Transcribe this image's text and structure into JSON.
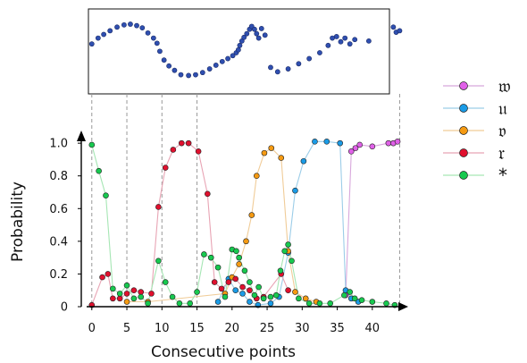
{
  "chart_data": {
    "type": "line",
    "xlabel": "Consecutive points",
    "ylabel": "Probability",
    "xticks": [
      0,
      5,
      10,
      15,
      20,
      25,
      30,
      35,
      40
    ],
    "yticks": [
      "0",
      "0.2",
      "0.4",
      "0.6",
      "0.8",
      "1.0"
    ],
    "xlim": [
      -1.5,
      45.5
    ],
    "ylim": [
      0,
      1.05
    ],
    "legend_position": "right",
    "series": [
      {
        "name": "𝔴",
        "color": "#e060e8",
        "line_color": "#d8a8dc",
        "points": [
          [
            36.2,
            0.07
          ],
          [
            37,
            0.95
          ],
          [
            37.6,
            0.97
          ],
          [
            38.2,
            0.99
          ],
          [
            40,
            0.98
          ],
          [
            42.3,
            1.0
          ],
          [
            43,
            1.0
          ],
          [
            43.6,
            1.01
          ]
        ]
      },
      {
        "name": "𝔲",
        "color": "#1a9be6",
        "line_color": "#9ccde8",
        "points": [
          [
            18,
            0.03
          ],
          [
            19.5,
            0.17
          ],
          [
            20.5,
            0.1
          ],
          [
            21.5,
            0.08
          ],
          [
            22.5,
            0.03
          ],
          [
            23.7,
            0.01
          ],
          [
            25.5,
            0.02
          ],
          [
            26.7,
            0.06
          ],
          [
            28,
            0.33
          ],
          [
            29,
            0.71
          ],
          [
            30.2,
            0.89
          ],
          [
            31.8,
            1.01
          ],
          [
            33.5,
            1.01
          ],
          [
            35.4,
            1.0
          ],
          [
            36.2,
            0.1
          ],
          [
            37,
            0.05
          ],
          [
            38,
            0.03
          ]
        ]
      },
      {
        "name": "𝔳",
        "color": "#f59a12",
        "line_color": "#f0cc98",
        "points": [
          [
            5,
            0.03
          ],
          [
            8,
            0.03
          ],
          [
            19,
            0.08
          ],
          [
            20,
            0.18
          ],
          [
            21,
            0.26
          ],
          [
            22,
            0.4
          ],
          [
            22.8,
            0.56
          ],
          [
            23.5,
            0.8
          ],
          [
            24.6,
            0.94
          ],
          [
            25.6,
            0.97
          ],
          [
            27,
            0.91
          ],
          [
            28,
            0.34
          ],
          [
            29,
            0.09
          ],
          [
            30.5,
            0.05
          ],
          [
            32,
            0.03
          ]
        ]
      },
      {
        "name": "𝔯",
        "color": "#e0102e",
        "line_color": "#e8a4b4",
        "points": [
          [
            0,
            0.01
          ],
          [
            1.5,
            0.18
          ],
          [
            2.3,
            0.2
          ],
          [
            3,
            0.05
          ],
          [
            4,
            0.05
          ],
          [
            5,
            0.08
          ],
          [
            6,
            0.1
          ],
          [
            7,
            0.09
          ],
          [
            8.5,
            0.08
          ],
          [
            9.5,
            0.61
          ],
          [
            10.5,
            0.85
          ],
          [
            11.6,
            0.96
          ],
          [
            12.8,
            1.0
          ],
          [
            13.8,
            1.0
          ],
          [
            15.2,
            0.95
          ],
          [
            16.5,
            0.69
          ],
          [
            17.5,
            0.15
          ],
          [
            18.5,
            0.11
          ],
          [
            19.5,
            0.15
          ],
          [
            20.5,
            0.17
          ],
          [
            21.5,
            0.12
          ],
          [
            22.5,
            0.1
          ],
          [
            23.5,
            0.05
          ],
          [
            24.5,
            0.06
          ],
          [
            27,
            0.2
          ],
          [
            28,
            0.1
          ]
        ]
      },
      {
        "name": "*",
        "color": "#17c94f",
        "line_color": "#a6e6b4",
        "points": [
          [
            0,
            0.99
          ],
          [
            1,
            0.83
          ],
          [
            2,
            0.68
          ],
          [
            3,
            0.11
          ],
          [
            4,
            0.08
          ],
          [
            5,
            0.13
          ],
          [
            6,
            0.05
          ],
          [
            7,
            0.06
          ],
          [
            8,
            0.02
          ],
          [
            9.5,
            0.28
          ],
          [
            10.5,
            0.15
          ],
          [
            11.5,
            0.06
          ],
          [
            12.5,
            0.02
          ],
          [
            14,
            0.02
          ],
          [
            15,
            0.09
          ],
          [
            16,
            0.32
          ],
          [
            17,
            0.3
          ],
          [
            18,
            0.24
          ],
          [
            19,
            0.06
          ],
          [
            20,
            0.35
          ],
          [
            20.6,
            0.34
          ],
          [
            21,
            0.3
          ],
          [
            21.8,
            0.22
          ],
          [
            22.5,
            0.15
          ],
          [
            23.2,
            0.07
          ],
          [
            23.8,
            0.12
          ],
          [
            24.5,
            0.05
          ],
          [
            25.5,
            0.06
          ],
          [
            26.3,
            0.07
          ],
          [
            26.9,
            0.22
          ],
          [
            27.5,
            0.34
          ],
          [
            28,
            0.38
          ],
          [
            28.5,
            0.28
          ],
          [
            29.5,
            0.05
          ],
          [
            31,
            0.02
          ],
          [
            32.5,
            0.02
          ],
          [
            34,
            0.02
          ],
          [
            36,
            0.07
          ],
          [
            36.8,
            0.09
          ],
          [
            37.5,
            0.05
          ],
          [
            38.5,
            0.04
          ],
          [
            40,
            0.03
          ],
          [
            42,
            0.02
          ],
          [
            43.2,
            0.01
          ]
        ]
      }
    ],
    "trajectory": {
      "points": [
        [
          0,
          0.62
        ],
        [
          0.9,
          0.7
        ],
        [
          1.7,
          0.75
        ],
        [
          2.6,
          0.8
        ],
        [
          3.6,
          0.85
        ],
        [
          4.6,
          0.88
        ],
        [
          5.5,
          0.89
        ],
        [
          6.4,
          0.87
        ],
        [
          7.2,
          0.84
        ],
        [
          8,
          0.77
        ],
        [
          8.8,
          0.7
        ],
        [
          9.3,
          0.63
        ],
        [
          9.7,
          0.52
        ],
        [
          10.3,
          0.4
        ],
        [
          11,
          0.32
        ],
        [
          11.8,
          0.26
        ],
        [
          12.7,
          0.2
        ],
        [
          13.8,
          0.19
        ],
        [
          14.8,
          0.2
        ],
        [
          15.8,
          0.23
        ],
        [
          16.8,
          0.28
        ],
        [
          17.7,
          0.33
        ],
        [
          18.6,
          0.38
        ],
        [
          19.4,
          0.42
        ],
        [
          20.1,
          0.46
        ],
        [
          20.6,
          0.5
        ],
        [
          20.9,
          0.54
        ],
        [
          21.1,
          0.6
        ],
        [
          21.4,
          0.66
        ],
        [
          21.7,
          0.71
        ],
        [
          22.1,
          0.76
        ],
        [
          22.5,
          0.82
        ],
        [
          22.8,
          0.86
        ],
        [
          23.2,
          0.82
        ],
        [
          23.5,
          0.76
        ],
        [
          23.8,
          0.7
        ],
        [
          24.2,
          0.83
        ],
        [
          24.7,
          0.74
        ],
        [
          25.5,
          0.3
        ],
        [
          26.5,
          0.24
        ],
        [
          28,
          0.28
        ],
        [
          29.5,
          0.35
        ],
        [
          31,
          0.42
        ],
        [
          32.5,
          0.5
        ],
        [
          33.7,
          0.6
        ],
        [
          34.3,
          0.7
        ],
        [
          34.9,
          0.72
        ],
        [
          35.5,
          0.65
        ],
        [
          36.1,
          0.7
        ],
        [
          36.8,
          0.62
        ],
        [
          37.5,
          0.68
        ],
        [
          39.5,
          0.66
        ],
        [
          43,
          0.85
        ],
        [
          43.4,
          0.78
        ],
        [
          43.9,
          0.8
        ]
      ],
      "xlim": [
        -1.5,
        45.5
      ],
      "ylim": [
        0,
        1
      ]
    },
    "guides": [
      0,
      5,
      10,
      15,
      43.9
    ]
  }
}
